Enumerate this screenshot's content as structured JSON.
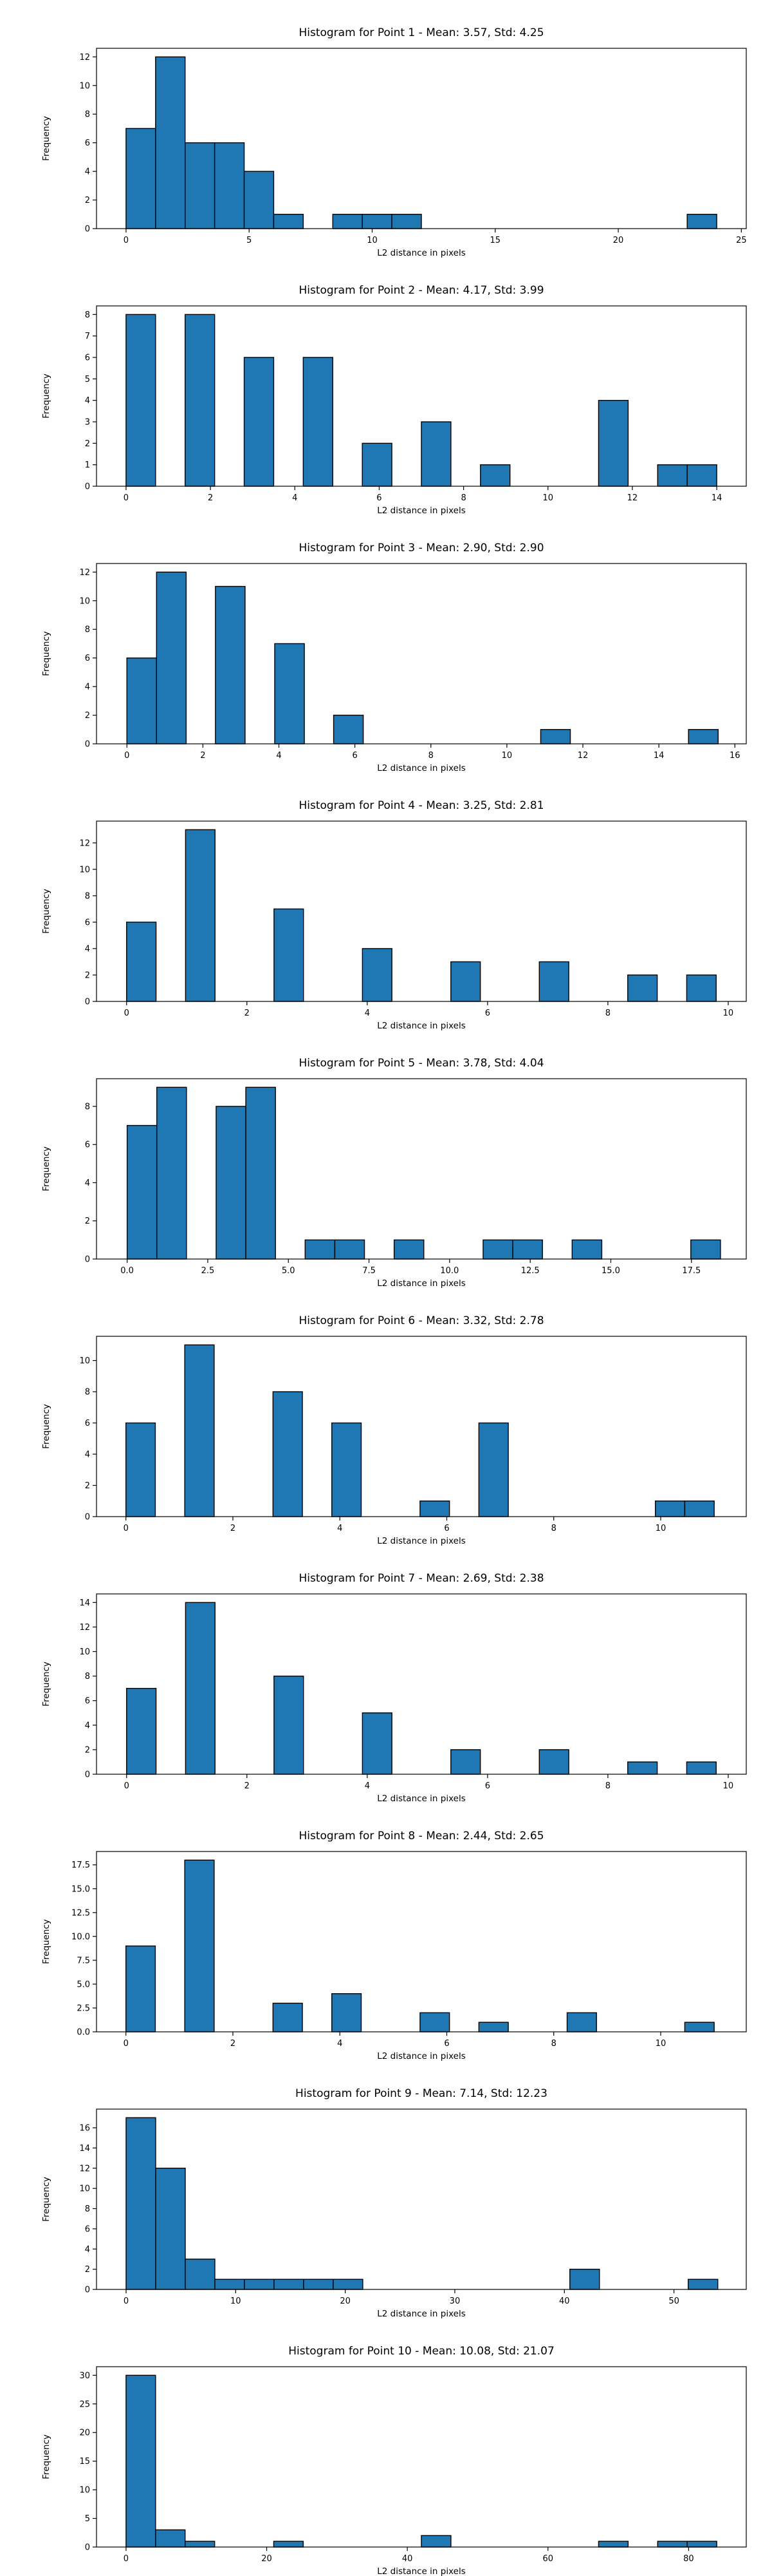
{
  "style": {
    "bar_color": "#1f77b4",
    "edge_color": "#000000",
    "background": "#ffffff"
  },
  "chart_data": [
    {
      "type": "bar",
      "title": "Histogram for Point 1 - Mean: 3.57, Std: 4.25",
      "xlabel": "L2 distance in pixels",
      "ylabel": "Frequency",
      "xlim": [
        -1.2,
        25.2
      ],
      "ylim": [
        0,
        12.6
      ],
      "xticks": [
        0,
        5,
        10,
        15,
        20,
        25
      ],
      "xtick_labels": [
        "0",
        "5",
        "10",
        "15",
        "20",
        "25"
      ],
      "yticks": [
        0,
        2,
        4,
        6,
        8,
        10,
        12
      ],
      "ytick_labels": [
        "0",
        "2",
        "4",
        "6",
        "8",
        "10",
        "12"
      ],
      "bins": [
        {
          "x0": 0.0,
          "x1": 1.2,
          "count": 7
        },
        {
          "x0": 1.2,
          "x1": 2.4,
          "count": 12
        },
        {
          "x0": 2.4,
          "x1": 3.6,
          "count": 6
        },
        {
          "x0": 3.6,
          "x1": 4.8,
          "count": 6
        },
        {
          "x0": 4.8,
          "x1": 6.0,
          "count": 4
        },
        {
          "x0": 6.0,
          "x1": 7.2,
          "count": 1
        },
        {
          "x0": 8.4,
          "x1": 9.6,
          "count": 1
        },
        {
          "x0": 9.6,
          "x1": 10.8,
          "count": 1
        },
        {
          "x0": 10.8,
          "x1": 12.0,
          "count": 1
        },
        {
          "x0": 22.8,
          "x1": 24.0,
          "count": 1
        }
      ]
    },
    {
      "type": "bar",
      "title": "Histogram for Point 2 - Mean: 4.17, Std: 3.99",
      "xlabel": "L2 distance in pixels",
      "ylabel": "Frequency",
      "xlim": [
        -0.7,
        14.7
      ],
      "ylim": [
        0,
        8.4
      ],
      "xticks": [
        0,
        2,
        4,
        6,
        8,
        10,
        12,
        14
      ],
      "xtick_labels": [
        "0",
        "2",
        "4",
        "6",
        "8",
        "10",
        "12",
        "14"
      ],
      "yticks": [
        0,
        1,
        2,
        3,
        4,
        5,
        6,
        7,
        8
      ],
      "ytick_labels": [
        "0",
        "1",
        "2",
        "3",
        "4",
        "5",
        "6",
        "7",
        "8"
      ],
      "bins": [
        {
          "x0": 0.0,
          "x1": 0.7,
          "count": 8
        },
        {
          "x0": 1.4,
          "x1": 2.1,
          "count": 8
        },
        {
          "x0": 2.8,
          "x1": 3.5,
          "count": 6
        },
        {
          "x0": 4.2,
          "x1": 4.9,
          "count": 6
        },
        {
          "x0": 5.6,
          "x1": 6.3,
          "count": 2
        },
        {
          "x0": 7.0,
          "x1": 7.7,
          "count": 3
        },
        {
          "x0": 8.4,
          "x1": 9.1,
          "count": 1
        },
        {
          "x0": 11.2,
          "x1": 11.9,
          "count": 4
        },
        {
          "x0": 12.6,
          "x1": 13.3,
          "count": 1
        },
        {
          "x0": 13.3,
          "x1": 14.0,
          "count": 1
        }
      ]
    },
    {
      "type": "bar",
      "title": "Histogram for Point 3 - Mean: 2.90, Std: 2.90",
      "xlabel": "L2 distance in pixels",
      "ylabel": "Frequency",
      "xlim": [
        -0.8,
        16.3
      ],
      "ylim": [
        0,
        12.6
      ],
      "xticks": [
        0,
        2,
        4,
        6,
        8,
        10,
        12,
        14,
        16
      ],
      "xtick_labels": [
        "0",
        "2",
        "4",
        "6",
        "8",
        "10",
        "12",
        "14",
        "16"
      ],
      "yticks": [
        0,
        2,
        4,
        6,
        8,
        10,
        12
      ],
      "ytick_labels": [
        "0",
        "2",
        "4",
        "6",
        "8",
        "10",
        "12"
      ],
      "bins": [
        {
          "x0": 0.0,
          "x1": 0.78,
          "count": 6
        },
        {
          "x0": 0.78,
          "x1": 1.56,
          "count": 12
        },
        {
          "x0": 2.33,
          "x1": 3.11,
          "count": 11
        },
        {
          "x0": 3.89,
          "x1": 4.67,
          "count": 7
        },
        {
          "x0": 5.44,
          "x1": 6.22,
          "count": 2
        },
        {
          "x0": 10.89,
          "x1": 11.67,
          "count": 1
        },
        {
          "x0": 14.78,
          "x1": 15.56,
          "count": 1
        }
      ]
    },
    {
      "type": "bar",
      "title": "Histogram for Point 4 - Mean: 3.25, Std: 2.81",
      "xlabel": "L2 distance in pixels",
      "ylabel": "Frequency",
      "xlim": [
        -0.5,
        10.3
      ],
      "ylim": [
        0,
        13.65
      ],
      "xticks": [
        0,
        2,
        4,
        6,
        8,
        10
      ],
      "xtick_labels": [
        "0",
        "2",
        "4",
        "6",
        "8",
        "10"
      ],
      "yticks": [
        0,
        2,
        4,
        6,
        8,
        10,
        12
      ],
      "ytick_labels": [
        "0",
        "2",
        "4",
        "6",
        "8",
        "10",
        "12"
      ],
      "bins": [
        {
          "x0": 0.0,
          "x1": 0.49,
          "count": 6
        },
        {
          "x0": 0.98,
          "x1": 1.47,
          "count": 13
        },
        {
          "x0": 2.45,
          "x1": 2.94,
          "count": 7
        },
        {
          "x0": 3.92,
          "x1": 4.41,
          "count": 4
        },
        {
          "x0": 5.39,
          "x1": 5.88,
          "count": 3
        },
        {
          "x0": 6.86,
          "x1": 7.35,
          "count": 3
        },
        {
          "x0": 8.33,
          "x1": 8.82,
          "count": 2
        },
        {
          "x0": 9.31,
          "x1": 9.8,
          "count": 2
        }
      ]
    },
    {
      "type": "bar",
      "title": "Histogram for Point 5 - Mean: 3.78, Std: 4.04",
      "xlabel": "L2 distance in pixels",
      "ylabel": "Frequency",
      "xlim": [
        -0.95,
        19.2
      ],
      "ylim": [
        0,
        9.45
      ],
      "xticks": [
        0.0,
        2.5,
        5.0,
        7.5,
        10.0,
        12.5,
        15.0,
        17.5
      ],
      "xtick_labels": [
        "0.0",
        "2.5",
        "5.0",
        "7.5",
        "10.0",
        "12.5",
        "15.0",
        "17.5"
      ],
      "yticks": [
        0,
        2,
        4,
        6,
        8
      ],
      "ytick_labels": [
        "0",
        "2",
        "4",
        "6",
        "8"
      ],
      "bins": [
        {
          "x0": 0.0,
          "x1": 0.92,
          "count": 7
        },
        {
          "x0": 0.92,
          "x1": 1.84,
          "count": 9
        },
        {
          "x0": 2.76,
          "x1": 3.68,
          "count": 8
        },
        {
          "x0": 3.68,
          "x1": 4.6,
          "count": 9
        },
        {
          "x0": 5.52,
          "x1": 6.44,
          "count": 1
        },
        {
          "x0": 6.44,
          "x1": 7.36,
          "count": 1
        },
        {
          "x0": 8.28,
          "x1": 9.2,
          "count": 1
        },
        {
          "x0": 11.04,
          "x1": 11.96,
          "count": 1
        },
        {
          "x0": 11.96,
          "x1": 12.88,
          "count": 1
        },
        {
          "x0": 13.8,
          "x1": 14.72,
          "count": 1
        },
        {
          "x0": 17.48,
          "x1": 18.4,
          "count": 1
        }
      ]
    },
    {
      "type": "bar",
      "title": "Histogram for Point 6 - Mean: 3.32, Std: 2.78",
      "xlabel": "L2 distance in pixels",
      "ylabel": "Frequency",
      "xlim": [
        -0.55,
        11.6
      ],
      "ylim": [
        0,
        11.55
      ],
      "xticks": [
        0,
        2,
        4,
        6,
        8,
        10
      ],
      "xtick_labels": [
        "0",
        "2",
        "4",
        "6",
        "8",
        "10"
      ],
      "yticks": [
        0,
        2,
        4,
        6,
        8,
        10
      ],
      "ytick_labels": [
        "0",
        "2",
        "4",
        "6",
        "8",
        "10"
      ],
      "bins": [
        {
          "x0": 0.0,
          "x1": 0.55,
          "count": 6
        },
        {
          "x0": 1.1,
          "x1": 1.65,
          "count": 11
        },
        {
          "x0": 2.75,
          "x1": 3.3,
          "count": 8
        },
        {
          "x0": 3.85,
          "x1": 4.4,
          "count": 6
        },
        {
          "x0": 5.5,
          "x1": 6.05,
          "count": 1
        },
        {
          "x0": 6.6,
          "x1": 7.15,
          "count": 6
        },
        {
          "x0": 9.9,
          "x1": 10.45,
          "count": 1
        },
        {
          "x0": 10.45,
          "x1": 11.0,
          "count": 1
        }
      ]
    },
    {
      "type": "bar",
      "title": "Histogram for Point 7 - Mean: 2.69, Std: 2.38",
      "xlabel": "L2 distance in pixels",
      "ylabel": "Frequency",
      "xlim": [
        -0.5,
        10.3
      ],
      "ylim": [
        0,
        14.7
      ],
      "xticks": [
        0,
        2,
        4,
        6,
        8,
        10
      ],
      "xtick_labels": [
        "0",
        "2",
        "4",
        "6",
        "8",
        "10"
      ],
      "yticks": [
        0,
        2,
        4,
        6,
        8,
        10,
        12,
        14
      ],
      "ytick_labels": [
        "0",
        "2",
        "4",
        "6",
        "8",
        "10",
        "12",
        "14"
      ],
      "bins": [
        {
          "x0": 0.0,
          "x1": 0.49,
          "count": 7
        },
        {
          "x0": 0.98,
          "x1": 1.47,
          "count": 14
        },
        {
          "x0": 2.45,
          "x1": 2.94,
          "count": 8
        },
        {
          "x0": 3.92,
          "x1": 4.41,
          "count": 5
        },
        {
          "x0": 5.39,
          "x1": 5.88,
          "count": 2
        },
        {
          "x0": 6.86,
          "x1": 7.35,
          "count": 2
        },
        {
          "x0": 8.33,
          "x1": 8.82,
          "count": 1
        },
        {
          "x0": 9.31,
          "x1": 9.8,
          "count": 1
        }
      ]
    },
    {
      "type": "bar",
      "title": "Histogram for Point 8 - Mean: 2.44, Std: 2.65",
      "xlabel": "L2 distance in pixels",
      "ylabel": "Frequency",
      "xlim": [
        -0.55,
        11.6
      ],
      "ylim": [
        0,
        18.9
      ],
      "xticks": [
        0,
        2,
        4,
        6,
        8,
        10
      ],
      "xtick_labels": [
        "0",
        "2",
        "4",
        "6",
        "8",
        "10"
      ],
      "yticks": [
        0,
        2.5,
        5,
        7.5,
        10,
        12.5,
        15,
        17.5
      ],
      "ytick_labels": [
        "0.0",
        "2.5",
        "5.0",
        "7.5",
        "10.0",
        "12.5",
        "15.0",
        "17.5"
      ],
      "bins": [
        {
          "x0": 0.0,
          "x1": 0.55,
          "count": 9
        },
        {
          "x0": 1.1,
          "x1": 1.65,
          "count": 18
        },
        {
          "x0": 2.75,
          "x1": 3.3,
          "count": 3
        },
        {
          "x0": 3.85,
          "x1": 4.4,
          "count": 4
        },
        {
          "x0": 5.5,
          "x1": 6.05,
          "count": 2
        },
        {
          "x0": 6.6,
          "x1": 7.15,
          "count": 1
        },
        {
          "x0": 8.25,
          "x1": 8.8,
          "count": 2
        },
        {
          "x0": 10.45,
          "x1": 11.0,
          "count": 1
        }
      ]
    },
    {
      "type": "bar",
      "title": "Histogram for Point 9 - Mean: 7.14, Std: 12.23",
      "xlabel": "L2 distance in pixels",
      "ylabel": "Frequency",
      "xlim": [
        -2.7,
        56.6
      ],
      "ylim": [
        0,
        17.85
      ],
      "xticks": [
        0,
        10,
        20,
        30,
        40,
        50
      ],
      "xtick_labels": [
        "0",
        "10",
        "20",
        "30",
        "40",
        "50"
      ],
      "yticks": [
        0,
        2,
        4,
        6,
        8,
        10,
        12,
        14,
        16
      ],
      "ytick_labels": [
        "0",
        "2",
        "4",
        "6",
        "8",
        "10",
        "12",
        "14",
        "16"
      ],
      "bins": [
        {
          "x0": 0.0,
          "x1": 2.7,
          "count": 17
        },
        {
          "x0": 2.7,
          "x1": 5.4,
          "count": 12
        },
        {
          "x0": 5.4,
          "x1": 8.1,
          "count": 3
        },
        {
          "x0": 8.1,
          "x1": 10.8,
          "count": 1
        },
        {
          "x0": 10.8,
          "x1": 13.5,
          "count": 1
        },
        {
          "x0": 13.5,
          "x1": 16.2,
          "count": 1
        },
        {
          "x0": 16.2,
          "x1": 18.9,
          "count": 1
        },
        {
          "x0": 18.9,
          "x1": 21.6,
          "count": 1
        },
        {
          "x0": 40.5,
          "x1": 43.2,
          "count": 2
        },
        {
          "x0": 51.3,
          "x1": 54.0,
          "count": 1
        }
      ]
    },
    {
      "type": "bar",
      "title": "Histogram for Point 10 - Mean: 10.08, Std: 21.07",
      "xlabel": "L2 distance in pixels",
      "ylabel": "Frequency",
      "xlim": [
        -4.2,
        88.2
      ],
      "ylim": [
        0,
        31.5
      ],
      "xticks": [
        0,
        20,
        40,
        60,
        80
      ],
      "xtick_labels": [
        "0",
        "20",
        "40",
        "60",
        "80"
      ],
      "yticks": [
        0,
        5,
        10,
        15,
        20,
        25,
        30
      ],
      "ytick_labels": [
        "0",
        "5",
        "10",
        "15",
        "20",
        "25",
        "30"
      ],
      "bins": [
        {
          "x0": 0.0,
          "x1": 4.2,
          "count": 30
        },
        {
          "x0": 4.2,
          "x1": 8.4,
          "count": 3
        },
        {
          "x0": 8.4,
          "x1": 12.6,
          "count": 1
        },
        {
          "x0": 21.0,
          "x1": 25.2,
          "count": 1
        },
        {
          "x0": 42.0,
          "x1": 46.2,
          "count": 2
        },
        {
          "x0": 67.2,
          "x1": 71.4,
          "count": 1
        },
        {
          "x0": 75.6,
          "x1": 79.8,
          "count": 1
        },
        {
          "x0": 79.8,
          "x1": 84.0,
          "count": 1
        }
      ]
    }
  ]
}
